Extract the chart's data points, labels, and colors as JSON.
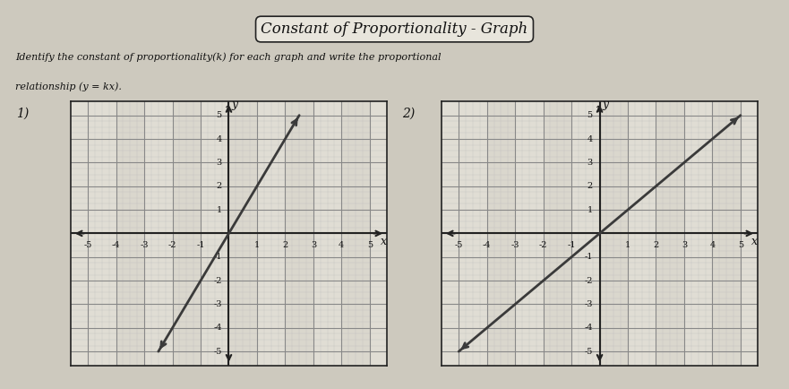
{
  "title": "Constant of Proportionality - Graph",
  "instruction_line1": "Identify the constant of proportionality(k) for each graph and write the proportional",
  "instruction_line2": "relationship (y = kx).",
  "graph1_label": "1)",
  "graph2_label": "2)",
  "axis_min": -5,
  "axis_max": 5,
  "graph1_slope": 2,
  "graph2_slope": 1,
  "line_color": "#3a3a3a",
  "grid_major_color": "#888888",
  "grid_minor_color": "#bbbbbb",
  "bg_color": "#ddd9ce",
  "paper_color": "#cdc9be",
  "graph_bg_light": "#e0ddd4",
  "graph_bg_dark": "#d5d2c8",
  "border_color": "#222222",
  "font_color": "#111111",
  "title_bg": "#e8e5dc",
  "major_lw": 0.8,
  "minor_lw": 0.3,
  "axis_lw": 1.5,
  "line_lw": 2.0,
  "tick_fontsize": 7,
  "label_fontsize": 9,
  "title_fontsize": 12
}
